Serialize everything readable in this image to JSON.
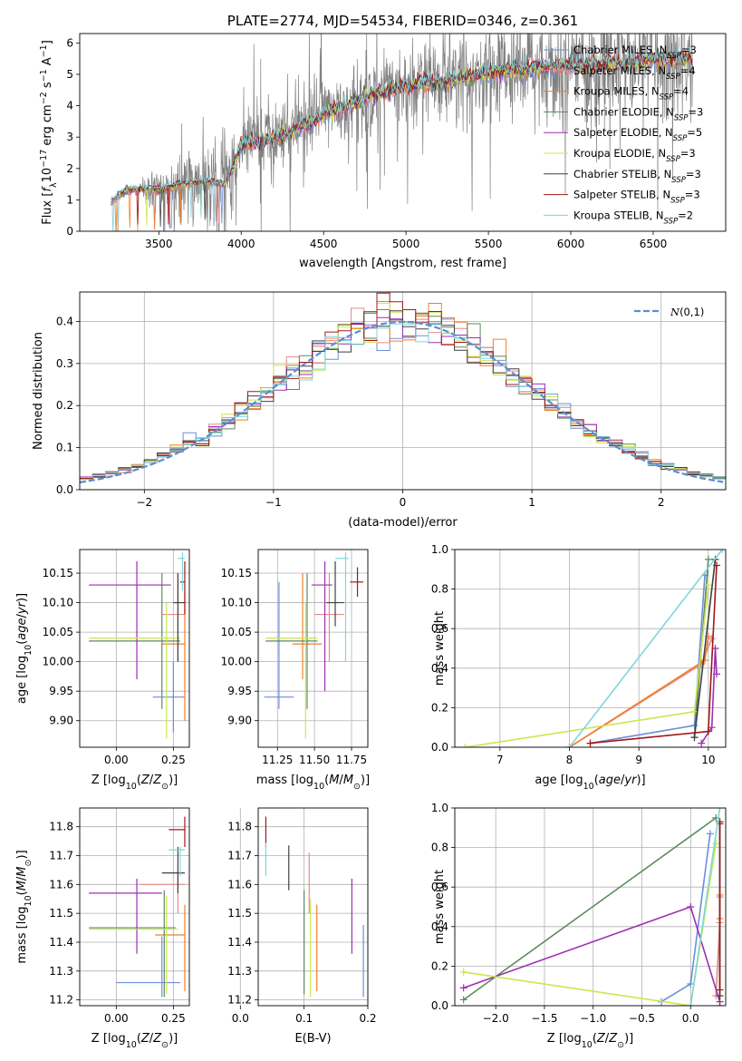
{
  "chart_data": [
    {
      "id": "spectrum",
      "type": "line",
      "title": "PLATE=2774, MJD=54534, FIBERID=0346, z=0.361",
      "xlabel": "wavelength [Angstrom, rest frame]",
      "ylabel_parts": [
        "Flux [",
        "f",
        "λ",
        "10",
        "−17",
        " erg cm",
        "−2",
        " s",
        "−1",
        " A",
        "−1",
        "]"
      ],
      "xlim": [
        3020,
        6940
      ],
      "ylim": [
        0,
        6.3
      ],
      "xticks": [
        3500,
        4000,
        4500,
        5000,
        5500,
        6000,
        6500
      ],
      "yticks": [
        0,
        1,
        2,
        3,
        4,
        5,
        6
      ],
      "data_color": "#808080",
      "data_x_range": [
        3210,
        6740
      ],
      "legend_position": "top-right",
      "continuum": [
        [
          3210,
          0.95
        ],
        [
          3300,
          1.3
        ],
        [
          3400,
          1.35
        ],
        [
          3500,
          1.3
        ],
        [
          3600,
          1.45
        ],
        [
          3700,
          1.55
        ],
        [
          3800,
          1.55
        ],
        [
          3900,
          1.5
        ],
        [
          3950,
          2.0
        ],
        [
          4000,
          2.75
        ],
        [
          4100,
          2.85
        ],
        [
          4200,
          3.0
        ],
        [
          4300,
          3.15
        ],
        [
          4400,
          3.45
        ],
        [
          4500,
          3.75
        ],
        [
          4600,
          3.9
        ],
        [
          4700,
          4.1
        ],
        [
          4800,
          4.35
        ],
        [
          4900,
          4.5
        ],
        [
          5000,
          4.6
        ],
        [
          5100,
          4.75
        ],
        [
          5200,
          4.7
        ],
        [
          5300,
          4.85
        ],
        [
          5400,
          4.95
        ],
        [
          5500,
          5.05
        ],
        [
          5600,
          5.1
        ],
        [
          5700,
          5.15
        ],
        [
          5800,
          5.2
        ],
        [
          5900,
          5.25
        ],
        [
          6000,
          5.3
        ],
        [
          6100,
          5.3
        ],
        [
          6200,
          5.35
        ],
        [
          6300,
          5.35
        ],
        [
          6400,
          5.4
        ],
        [
          6500,
          5.45
        ],
        [
          6600,
          5.5
        ],
        [
          6740,
          5.5
        ]
      ],
      "series": [
        {
          "name": "Chabrier MILES",
          "nssp": "3",
          "color": "#6a8fd6"
        },
        {
          "name": "Salpeter MILES",
          "nssp": "4",
          "color": "#e58b8b"
        },
        {
          "name": "Kroupa MILES",
          "nssp": "4",
          "color": "#f07f2e"
        },
        {
          "name": "Chabrier ELODIE",
          "nssp": "3",
          "color": "#5e8a5e"
        },
        {
          "name": "Salpeter ELODIE",
          "nssp": "5",
          "color": "#9b30b0"
        },
        {
          "name": "Kroupa ELODIE",
          "nssp": "3",
          "color": "#cde64d"
        },
        {
          "name": "Chabrier STELIB",
          "nssp": "3",
          "color": "#404040"
        },
        {
          "name": "Salpeter STELIB",
          "nssp": "3",
          "color": "#a01818"
        },
        {
          "name": "Kroupa STELIB",
          "nssp": "2",
          "color": "#7fd6dc"
        }
      ]
    },
    {
      "id": "residuals",
      "type": "histogram",
      "xlabel": "(data-model)/error",
      "ylabel": "Normed distribution",
      "xlim": [
        -2.5,
        2.5
      ],
      "ylim": [
        0,
        0.47
      ],
      "xticks": [
        -2,
        -1,
        0,
        1,
        2
      ],
      "yticks": [
        0.0,
        0.1,
        0.2,
        0.3,
        0.4
      ],
      "bin_width": 0.1,
      "gauss_label": "N(0,1)",
      "gauss_color": "#5b8dd8",
      "legend_position": "top-right"
    },
    {
      "id": "age_vs_Z",
      "type": "errorbar",
      "xlabel": "Z [log10(Z/Z⊙)]",
      "ylabel": "age  [log10(age/yr)]",
      "xlim": [
        -0.16,
        0.32
      ],
      "ylim": [
        9.855,
        10.19
      ],
      "xticks": [
        0.0,
        0.25
      ],
      "yticks": [
        9.9,
        9.95,
        10.0,
        10.05,
        10.1,
        10.15
      ],
      "points": [
        {
          "c": 0,
          "x": 0.25,
          "y": 9.94,
          "xlo": 0.16,
          "xhi": 0.3,
          "ylo": 9.88,
          "yhi": 10.0
        },
        {
          "c": 1,
          "x": 0.27,
          "y": 10.08,
          "xlo": 0.2,
          "xhi": 0.3,
          "ylo": 10.0,
          "yhi": 10.15
        },
        {
          "c": 2,
          "x": 0.3,
          "y": 10.03,
          "xlo": 0.2,
          "xhi": 0.3,
          "ylo": 9.9,
          "yhi": 10.12
        },
        {
          "c": 3,
          "x": 0.2,
          "y": 10.035,
          "xlo": -0.12,
          "xhi": 0.28,
          "ylo": 9.92,
          "yhi": 10.15
        },
        {
          "c": 4,
          "x": 0.09,
          "y": 10.13,
          "xlo": -0.12,
          "xhi": 0.24,
          "ylo": 9.97,
          "yhi": 10.17
        },
        {
          "c": 5,
          "x": 0.22,
          "y": 10.04,
          "xlo": -0.12,
          "xhi": 0.28,
          "ylo": 9.87,
          "yhi": 10.1
        },
        {
          "c": 6,
          "x": 0.27,
          "y": 10.1,
          "xlo": 0.25,
          "xhi": 0.3,
          "ylo": 10.0,
          "yhi": 10.15
        },
        {
          "c": 7,
          "x": 0.3,
          "y": 10.135,
          "xlo": 0.28,
          "xhi": 0.3,
          "ylo": 10.08,
          "yhi": 10.17
        },
        {
          "c": 8,
          "x": 0.29,
          "y": 10.175,
          "xlo": 0.27,
          "xhi": 0.3,
          "ylo": 10.12,
          "yhi": 10.185
        }
      ]
    },
    {
      "id": "age_vs_mass",
      "type": "errorbar",
      "xlabel": "mass [log10(M/M⊙)]",
      "ylabel": "",
      "xlim": [
        11.12,
        11.86
      ],
      "ylim": [
        9.855,
        10.19
      ],
      "xticks": [
        11.25,
        11.5,
        11.75
      ],
      "yticks": [
        9.9,
        9.95,
        10.0,
        10.05,
        10.1,
        10.15
      ],
      "points": [
        {
          "c": 0,
          "x": 11.26,
          "y": 9.94,
          "xlo": 11.16,
          "xhi": 11.36,
          "ylo": 9.92,
          "yhi": 10.135
        },
        {
          "c": 1,
          "x": 11.6,
          "y": 10.08,
          "xlo": 11.5,
          "xhi": 11.7,
          "ylo": 10.0,
          "yhi": 10.15
        },
        {
          "c": 2,
          "x": 11.42,
          "y": 10.03,
          "xlo": 11.35,
          "xhi": 11.55,
          "ylo": 9.97,
          "yhi": 10.15
        },
        {
          "c": 3,
          "x": 11.45,
          "y": 10.035,
          "xlo": 11.17,
          "xhi": 11.52,
          "ylo": 9.92,
          "yhi": 10.15
        },
        {
          "c": 4,
          "x": 11.57,
          "y": 10.13,
          "xlo": 11.48,
          "xhi": 11.62,
          "ylo": 9.95,
          "yhi": 10.17
        },
        {
          "c": 5,
          "x": 11.44,
          "y": 10.04,
          "xlo": 11.17,
          "xhi": 11.52,
          "ylo": 9.87,
          "yhi": 10.1
        },
        {
          "c": 6,
          "x": 11.64,
          "y": 10.1,
          "xlo": 11.58,
          "xhi": 11.7,
          "ylo": 10.06,
          "yhi": 10.17
        },
        {
          "c": 7,
          "x": 11.79,
          "y": 10.135,
          "xlo": 11.74,
          "xhi": 11.83,
          "ylo": 10.11,
          "yhi": 10.16
        },
        {
          "c": 8,
          "x": 11.71,
          "y": 10.175,
          "xlo": 11.64,
          "xhi": 11.73,
          "ylo": 10.0,
          "yhi": 10.185
        }
      ]
    },
    {
      "id": "massweight_vs_age",
      "type": "line",
      "xlabel": "age  [log10(age/yr)]",
      "ylabel": "mass weight",
      "xlim": [
        6.35,
        10.25
      ],
      "ylim": [
        0,
        1
      ],
      "xticks": [
        7,
        8,
        9,
        10
      ],
      "yticks": [
        0.0,
        0.2,
        0.4,
        0.6,
        0.8,
        1.0
      ],
      "series": [
        {
          "c": 0,
          "points": [
            [
              8.3,
              0.02
            ],
            [
              9.8,
              0.11
            ],
            [
              9.95,
              0.87
            ]
          ]
        },
        {
          "c": 1,
          "points": [
            [
              8.0,
              0.0
            ],
            [
              9.9,
              0.42
            ],
            [
              10.05,
              0.55
            ]
          ]
        },
        {
          "c": 2,
          "points": [
            [
              8.0,
              0.0
            ],
            [
              9.95,
              0.44
            ],
            [
              10.0,
              0.56
            ]
          ]
        },
        {
          "c": 3,
          "points": [
            [
              9.8,
              0.05
            ],
            [
              10.0,
              0.95
            ]
          ]
        },
        {
          "c": 4,
          "points": [
            [
              9.9,
              0.02
            ],
            [
              10.05,
              0.1
            ],
            [
              10.1,
              0.5
            ],
            [
              10.12,
              0.37
            ]
          ]
        },
        {
          "c": 5,
          "points": [
            [
              6.5,
              0.0
            ],
            [
              9.8,
              0.18
            ],
            [
              10.0,
              0.82
            ]
          ]
        },
        {
          "c": 6,
          "points": [
            [
              9.8,
              0.05
            ],
            [
              10.1,
              0.95
            ]
          ]
        },
        {
          "c": 7,
          "points": [
            [
              8.3,
              0.02
            ],
            [
              10.0,
              0.08
            ],
            [
              10.12,
              0.92
            ]
          ]
        },
        {
          "c": 8,
          "points": [
            [
              8.0,
              0.0
            ],
            [
              10.2,
              1.0
            ]
          ]
        }
      ]
    },
    {
      "id": "mass_vs_Z",
      "type": "errorbar",
      "xlabel": "Z [log10(Z/Z⊙)]",
      "ylabel": "mass [log10(M/M⊙)]",
      "xlim": [
        -0.16,
        0.32
      ],
      "ylim": [
        11.18,
        11.865
      ],
      "xticks": [
        0.0,
        0.25
      ],
      "yticks": [
        11.2,
        11.3,
        11.4,
        11.5,
        11.6,
        11.7,
        11.8
      ],
      "points": [
        {
          "c": 0,
          "x": 0.2,
          "y": 11.26,
          "xlo": 0.0,
          "xhi": 0.28,
          "ylo": 11.21,
          "yhi": 11.42
        },
        {
          "c": 1,
          "x": 0.27,
          "y": 11.6,
          "xlo": 0.1,
          "xhi": 0.3,
          "ylo": 11.5,
          "yhi": 11.66
        },
        {
          "c": 2,
          "x": 0.3,
          "y": 11.425,
          "xlo": 0.17,
          "xhi": 0.3,
          "ylo": 11.23,
          "yhi": 11.53
        },
        {
          "c": 3,
          "x": 0.21,
          "y": 11.45,
          "xlo": -0.12,
          "xhi": 0.26,
          "ylo": 11.21,
          "yhi": 11.58
        },
        {
          "c": 4,
          "x": 0.09,
          "y": 11.57,
          "xlo": -0.12,
          "xhi": 0.2,
          "ylo": 11.36,
          "yhi": 11.62
        },
        {
          "c": 5,
          "x": 0.22,
          "y": 11.445,
          "xlo": -0.12,
          "xhi": 0.27,
          "ylo": 11.22,
          "yhi": 11.56
        },
        {
          "c": 6,
          "x": 0.27,
          "y": 11.64,
          "xlo": 0.2,
          "xhi": 0.3,
          "ylo": 11.57,
          "yhi": 11.73
        },
        {
          "c": 7,
          "x": 0.3,
          "y": 11.79,
          "xlo": 0.23,
          "xhi": 0.3,
          "ylo": 11.73,
          "yhi": 11.835
        },
        {
          "c": 8,
          "x": 0.28,
          "y": 11.72,
          "xlo": 0.23,
          "xhi": 0.3,
          "ylo": 11.63,
          "yhi": 11.73
        }
      ]
    },
    {
      "id": "mass_vs_EBV",
      "type": "errorbar",
      "xlabel": "E(B-V)",
      "ylabel": "",
      "xlim": [
        0.028,
        0.2
      ],
      "ylim": [
        11.18,
        11.865
      ],
      "xticks": [
        0.0,
        0.1,
        0.2
      ],
      "yticks": [
        11.2,
        11.3,
        11.4,
        11.5,
        11.6,
        11.7,
        11.8
      ],
      "points": [
        {
          "c": 0,
          "x": 0.193,
          "y": 11.33,
          "ylo": 11.21,
          "yhi": 11.46
        },
        {
          "c": 1,
          "x": 0.108,
          "y": 11.6,
          "ylo": 11.5,
          "yhi": 11.71
        },
        {
          "c": 2,
          "x": 0.12,
          "y": 11.425,
          "ylo": 11.23,
          "yhi": 11.53
        },
        {
          "c": 3,
          "x": 0.1,
          "y": 11.45,
          "ylo": 11.22,
          "yhi": 11.58
        },
        {
          "c": 4,
          "x": 0.175,
          "y": 11.57,
          "ylo": 11.36,
          "yhi": 11.62
        },
        {
          "c": 5,
          "x": 0.11,
          "y": 11.445,
          "ylo": 11.21,
          "yhi": 11.55
        },
        {
          "c": 6,
          "x": 0.076,
          "y": 11.64,
          "ylo": 11.58,
          "yhi": 11.735
        },
        {
          "c": 7,
          "x": 0.04,
          "y": 11.79,
          "ylo": 11.73,
          "yhi": 11.835
        },
        {
          "c": 8,
          "x": 0.04,
          "y": 11.72,
          "ylo": 11.63,
          "yhi": 11.745
        }
      ]
    },
    {
      "id": "massweight_vs_Z",
      "type": "line",
      "xlabel": "Z [log10(Z/Z⊙)]",
      "ylabel": "mass weight",
      "xlim": [
        -2.42,
        0.36
      ],
      "ylim": [
        0,
        1
      ],
      "xticks": [
        -2.0,
        -1.5,
        -1.0,
        -0.5,
        0.0
      ],
      "yticks": [
        0.0,
        0.2,
        0.4,
        0.6,
        0.8,
        1.0
      ],
      "series": [
        {
          "c": 0,
          "points": [
            [
              -0.3,
              0.02
            ],
            [
              0.0,
              0.11
            ],
            [
              0.2,
              0.87
            ]
          ]
        },
        {
          "c": 1,
          "points": [
            [
              0.26,
              0.05
            ],
            [
              0.3,
              0.42
            ],
            [
              0.3,
              0.55
            ]
          ]
        },
        {
          "c": 2,
          "points": [
            [
              0.3,
              0.0
            ],
            [
              0.3,
              0.44
            ],
            [
              0.3,
              0.56
            ]
          ]
        },
        {
          "c": 3,
          "points": [
            [
              -2.33,
              0.03
            ],
            [
              0.26,
              0.95
            ]
          ]
        },
        {
          "c": 4,
          "points": [
            [
              -2.33,
              0.09
            ],
            [
              0.0,
              0.5
            ],
            [
              0.3,
              0.02
            ]
          ]
        },
        {
          "c": 5,
          "points": [
            [
              -2.33,
              0.17
            ],
            [
              0.0,
              0.0
            ],
            [
              0.26,
              0.82
            ]
          ]
        },
        {
          "c": 6,
          "points": [
            [
              0.3,
              0.05
            ],
            [
              0.3,
              0.93
            ]
          ]
        },
        {
          "c": 7,
          "points": [
            [
              0.3,
              0.08
            ],
            [
              0.3,
              0.92
            ]
          ]
        },
        {
          "c": 8,
          "points": [
            [
              0.0,
              0.0
            ],
            [
              0.3,
              1.0
            ]
          ]
        }
      ]
    }
  ]
}
